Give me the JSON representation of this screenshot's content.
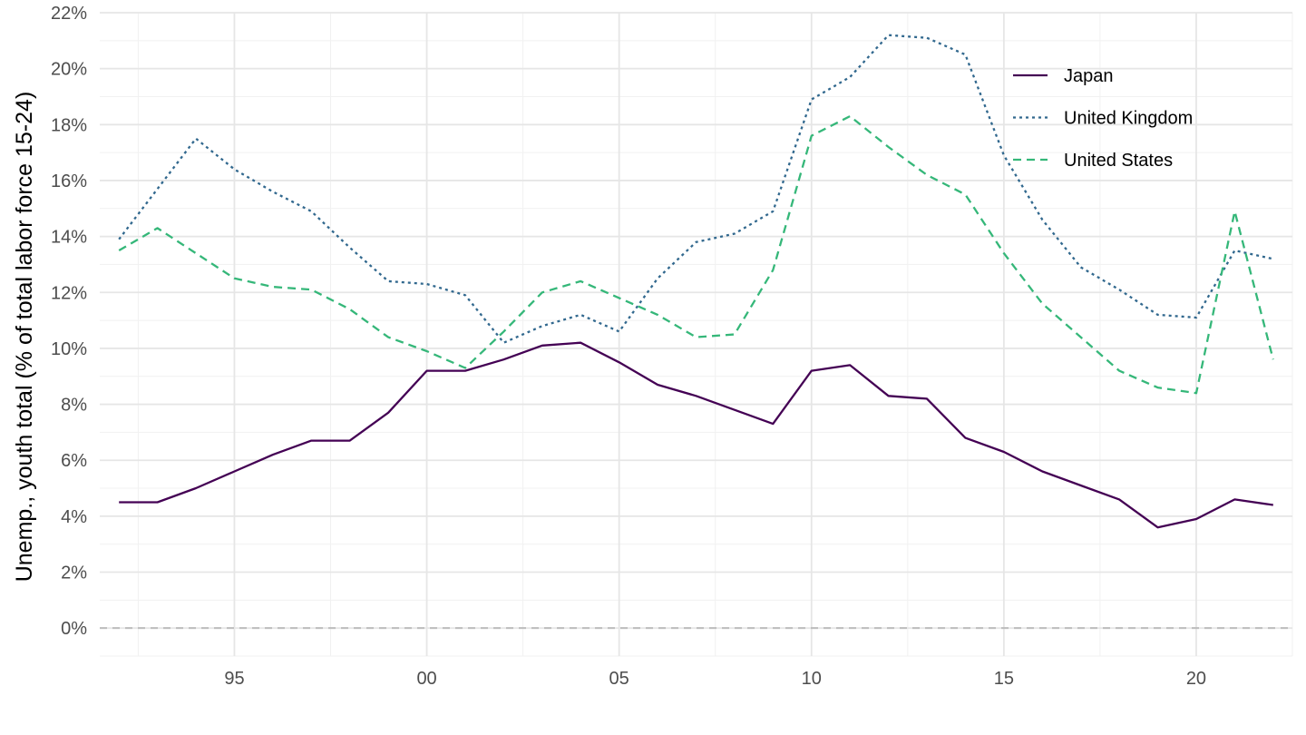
{
  "chart_data": {
    "type": "line",
    "title": "",
    "xlabel": "",
    "ylabel": "Unemp., youth total (% of total labor force 15-24)",
    "xlim": [
      1991.5,
      2022.5
    ],
    "ylim": [
      -1,
      22
    ],
    "x_ticks": [
      {
        "value": 1995,
        "label": "95"
      },
      {
        "value": 2000,
        "label": "00"
      },
      {
        "value": 2005,
        "label": "05"
      },
      {
        "value": 2010,
        "label": "10"
      },
      {
        "value": 2015,
        "label": "15"
      },
      {
        "value": 2020,
        "label": "20"
      }
    ],
    "y_ticks": [
      {
        "value": 0,
        "label": "0%"
      },
      {
        "value": 2,
        "label": "2%"
      },
      {
        "value": 4,
        "label": "4%"
      },
      {
        "value": 6,
        "label": "6%"
      },
      {
        "value": 8,
        "label": "8%"
      },
      {
        "value": 10,
        "label": "10%"
      },
      {
        "value": 12,
        "label": "12%"
      },
      {
        "value": 14,
        "label": "14%"
      },
      {
        "value": 16,
        "label": "16%"
      },
      {
        "value": 18,
        "label": "18%"
      },
      {
        "value": 20,
        "label": "20%"
      },
      {
        "value": 22,
        "label": "22%"
      }
    ],
    "grid": true,
    "reference_line": {
      "y": 0,
      "style": "dashed",
      "color": "#bdbdbd"
    },
    "legend_position": "top-right",
    "x": [
      1992,
      1993,
      1994,
      1995,
      1996,
      1997,
      1998,
      1999,
      2000,
      2001,
      2002,
      2003,
      2004,
      2005,
      2006,
      2007,
      2008,
      2009,
      2010,
      2011,
      2012,
      2013,
      2014,
      2015,
      2016,
      2017,
      2018,
      2019,
      2020,
      2021,
      2022
    ],
    "series": [
      {
        "name": "Japan",
        "color": "#440154",
        "dash": "solid",
        "values": [
          4.5,
          4.5,
          5.0,
          5.6,
          6.2,
          6.7,
          6.7,
          7.7,
          9.2,
          9.2,
          9.6,
          10.1,
          10.2,
          9.5,
          8.7,
          8.3,
          7.8,
          7.3,
          9.2,
          9.4,
          8.3,
          8.2,
          6.8,
          6.3,
          5.6,
          5.1,
          4.6,
          3.6,
          3.9,
          4.6,
          4.4
        ]
      },
      {
        "name": "United Kingdom",
        "color": "#31688e",
        "dash": "dotted",
        "values": [
          13.9,
          15.7,
          17.5,
          16.4,
          15.6,
          14.9,
          13.6,
          12.4,
          12.3,
          11.9,
          10.2,
          10.8,
          11.2,
          10.6,
          12.5,
          13.8,
          14.1,
          14.9,
          18.9,
          19.7,
          21.2,
          21.1,
          20.5,
          16.9,
          14.6,
          12.9,
          12.1,
          11.2,
          11.1,
          13.5,
          13.2
        ]
      },
      {
        "name": "United States",
        "color": "#35b779",
        "dash": "dashed",
        "values": [
          13.5,
          14.3,
          13.4,
          12.5,
          12.2,
          12.1,
          11.4,
          10.4,
          9.9,
          9.3,
          10.6,
          12.0,
          12.4,
          11.8,
          11.2,
          10.4,
          10.5,
          12.8,
          17.6,
          18.3,
          17.2,
          16.2,
          15.5,
          13.4,
          11.6,
          10.4,
          9.2,
          8.6,
          8.4,
          14.9,
          9.6
        ]
      }
    ]
  }
}
